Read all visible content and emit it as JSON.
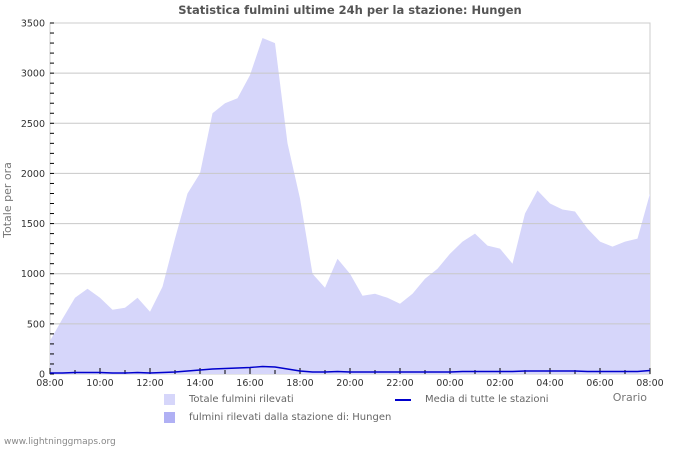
{
  "chart_data": {
    "type": "area",
    "title": "Statistica fulmini ultime 24h per la stazione: Hungen",
    "xlabel": "Orario",
    "ylabel": "Totale per ora",
    "ylim": [
      0,
      3500
    ],
    "yticks": [
      0,
      500,
      1000,
      1500,
      2000,
      2500,
      3000,
      3500
    ],
    "xticks": [
      "08:00",
      "10:00",
      "12:00",
      "14:00",
      "16:00",
      "18:00",
      "20:00",
      "22:00",
      "00:00",
      "02:00",
      "04:00",
      "06:00",
      "08:00"
    ],
    "grid": true,
    "legend_position": "bottom",
    "x": [
      "08:00",
      "08:30",
      "09:00",
      "09:30",
      "10:00",
      "10:30",
      "11:00",
      "11:30",
      "12:00",
      "12:30",
      "13:00",
      "13:30",
      "14:00",
      "14:30",
      "15:00",
      "15:30",
      "16:00",
      "16:30",
      "17:00",
      "17:30",
      "18:00",
      "18:30",
      "19:00",
      "19:30",
      "20:00",
      "20:30",
      "21:00",
      "21:30",
      "22:00",
      "22:30",
      "23:00",
      "23:30",
      "00:00",
      "00:30",
      "01:00",
      "01:30",
      "02:00",
      "02:30",
      "03:00",
      "03:30",
      "04:00",
      "04:30",
      "05:00",
      "05:30",
      "06:00",
      "06:30",
      "07:00",
      "07:30",
      "08:00"
    ],
    "series": [
      {
        "name": "Totale fulmini rilevati",
        "color": "#d6d6fa",
        "values": [
          330,
          550,
          760,
          850,
          760,
          640,
          660,
          760,
          620,
          870,
          1350,
          1800,
          2000,
          2600,
          2700,
          2750,
          2980,
          3350,
          3300,
          2300,
          1750,
          1000,
          860,
          1150,
          1000,
          780,
          800,
          760,
          700,
          800,
          950,
          1050,
          1200,
          1320,
          1400,
          1280,
          1250,
          1100,
          1600,
          1830,
          1700,
          1640,
          1620,
          1450,
          1320,
          1270,
          1320,
          1350,
          1800
        ]
      },
      {
        "name": "fulmini rilevati dalla stazione di: Hungen",
        "color": "#b0b0f4",
        "values": [
          0,
          0,
          0,
          0,
          0,
          0,
          0,
          0,
          0,
          0,
          0,
          0,
          0,
          0,
          0,
          0,
          0,
          0,
          0,
          0,
          0,
          0,
          0,
          0,
          0,
          0,
          0,
          0,
          0,
          0,
          0,
          0,
          0,
          0,
          0,
          0,
          0,
          0,
          0,
          0,
          0,
          0,
          0,
          0,
          0,
          0,
          0,
          0,
          0
        ]
      },
      {
        "name": "Media di tutte le stazioni",
        "color": "#0000cc",
        "values": [
          10,
          10,
          15,
          15,
          15,
          10,
          10,
          15,
          10,
          15,
          20,
          30,
          40,
          50,
          55,
          60,
          65,
          75,
          70,
          50,
          30,
          20,
          20,
          25,
          20,
          20,
          20,
          20,
          20,
          20,
          20,
          20,
          20,
          25,
          25,
          25,
          25,
          25,
          30,
          30,
          30,
          30,
          30,
          25,
          25,
          25,
          25,
          25,
          35
        ]
      }
    ]
  },
  "footer": {
    "site": "www.lightninggmaps.org"
  },
  "legend": {
    "total": "Totale fulmini rilevati",
    "station": "fulmini rilevati dalla stazione di: Hungen",
    "average": "Media di tutte le stazioni"
  }
}
